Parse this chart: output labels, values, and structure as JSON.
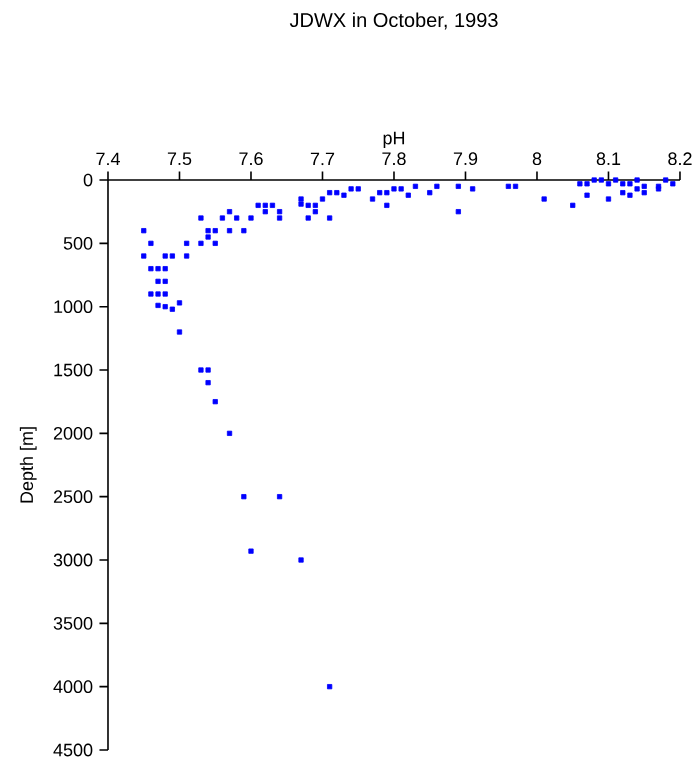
{
  "chart_data": {
    "type": "scatter",
    "title": "JDWX in October, 1993",
    "xlabel": "pH",
    "ylabel": "Depth [m]",
    "xlim": [
      7.4,
      8.2
    ],
    "xticks": [
      7.4,
      7.5,
      7.6,
      7.7,
      7.8,
      7.9,
      8,
      8.1,
      8.2
    ],
    "ylim": [
      4500,
      0
    ],
    "yticks": [
      0,
      500,
      1000,
      1500,
      2000,
      2500,
      3000,
      3500,
      4000,
      4500
    ],
    "marker": "square",
    "series": [
      {
        "color": "#0000ff",
        "x": [
          7.45,
          7.46,
          7.45,
          7.46,
          7.47,
          7.48,
          7.47,
          7.48,
          7.48,
          7.49,
          7.46,
          7.47,
          7.48,
          7.47,
          7.48,
          7.49,
          7.5,
          7.5,
          7.51,
          7.51,
          7.53,
          7.53,
          7.54,
          7.54,
          7.55,
          7.55,
          7.53,
          7.54,
          7.54,
          7.55,
          7.57,
          7.56,
          7.57,
          7.58,
          7.57,
          7.59,
          7.6,
          7.61,
          7.62,
          7.62,
          7.63,
          7.64,
          7.64,
          7.67,
          7.67,
          7.68,
          7.69,
          7.68,
          7.69,
          7.7,
          7.71,
          7.72,
          7.71,
          7.73,
          7.74,
          7.75,
          7.77,
          7.78,
          7.79,
          7.79,
          7.8,
          7.81,
          7.82,
          7.83,
          7.85,
          7.86,
          7.89,
          7.89,
          7.91,
          7.96,
          7.97,
          8.01,
          8.05,
          8.06,
          8.07,
          8.07,
          8.08,
          8.09,
          8.1,
          8.1,
          8.11,
          8.12,
          8.12,
          8.13,
          8.13,
          8.14,
          8.14,
          8.15,
          8.15,
          8.17,
          8.17,
          8.18,
          8.19,
          7.59,
          7.64,
          7.6,
          7.67,
          7.71
        ],
        "values": [
          400,
          500,
          600,
          700,
          700,
          700,
          800,
          800,
          600,
          600,
          900,
          900,
          900,
          990,
          1000,
          1020,
          970,
          1200,
          500,
          600,
          300,
          500,
          450,
          400,
          400,
          500,
          1500,
          1500,
          1600,
          1750,
          2000,
          300,
          250,
          300,
          400,
          400,
          300,
          200,
          200,
          250,
          200,
          250,
          300,
          150,
          190,
          200,
          200,
          300,
          250,
          150,
          100,
          100,
          300,
          120,
          70,
          70,
          150,
          100,
          200,
          100,
          70,
          70,
          120,
          50,
          100,
          50,
          50,
          250,
          70,
          50,
          50,
          150,
          200,
          30,
          30,
          120,
          0,
          0,
          30,
          150,
          0,
          30,
          100,
          30,
          120,
          0,
          70,
          50,
          100,
          50,
          70,
          0,
          30,
          2500,
          2500,
          2930,
          3000,
          4000
        ]
      }
    ]
  }
}
